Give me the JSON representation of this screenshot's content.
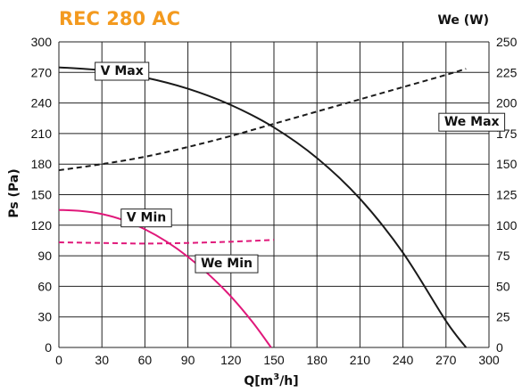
{
  "chart_data": {
    "type": "line",
    "title": "REC 280 AC",
    "xlabel": "Q[m³/h]",
    "ylabel": "Ps (Pa)",
    "y2label": "We (W)",
    "xlim": [
      0,
      300
    ],
    "ylim": [
      0,
      300
    ],
    "y2lim": [
      0,
      250
    ],
    "xticks": [
      0,
      30,
      60,
      90,
      120,
      150,
      180,
      210,
      240,
      270,
      300
    ],
    "yticks": [
      0,
      30,
      60,
      90,
      120,
      150,
      180,
      210,
      240,
      270,
      300
    ],
    "y2ticks": [
      0,
      25,
      50,
      75,
      100,
      125,
      150,
      175,
      200,
      225,
      250
    ],
    "grid": true,
    "series": [
      {
        "name": "V Max",
        "axis": "left",
        "color": "#1a1a1a",
        "dash": "solid",
        "x": [
          0,
          30,
          60,
          90,
          120,
          150,
          180,
          210,
          240,
          270,
          284
        ],
        "y": [
          275,
          272,
          265,
          254,
          238,
          216,
          186,
          146,
          93,
          26,
          0
        ]
      },
      {
        "name": "We Max",
        "axis": "right",
        "color": "#1a1a1a",
        "dash": "dashed",
        "x": [
          0,
          30,
          60,
          90,
          120,
          150,
          180,
          210,
          240,
          270,
          284
        ],
        "y": [
          145,
          150,
          156,
          164,
          173,
          183,
          193,
          203,
          213,
          223,
          228
        ]
      },
      {
        "name": "V Min",
        "axis": "left",
        "color": "#e0187a",
        "dash": "solid",
        "x": [
          0,
          15,
          30,
          45,
          60,
          75,
          90,
          105,
          120,
          135,
          148
        ],
        "y": [
          135,
          134,
          131,
          125,
          116,
          104,
          89,
          71,
          50,
          25,
          0
        ]
      },
      {
        "name": "We Min",
        "axis": "right",
        "color": "#e0187a",
        "dash": "dashed",
        "x": [
          0,
          30,
          60,
          90,
          120,
          150
        ],
        "y": [
          86,
          85.5,
          85,
          85.5,
          86.5,
          88
        ]
      }
    ],
    "annotations": [
      {
        "label": "V Max",
        "x": 44,
        "y": 272
      },
      {
        "label": "We Max",
        "x": 288,
        "y": 222
      },
      {
        "label": "V Min",
        "x": 61,
        "y": 128
      },
      {
        "label": "We Min",
        "x": 117,
        "y": 83
      }
    ]
  },
  "colors": {
    "title": "#f39a1f",
    "max_curves": "#1a1a1a",
    "min_curves": "#e0187a",
    "grid": "#222222"
  }
}
